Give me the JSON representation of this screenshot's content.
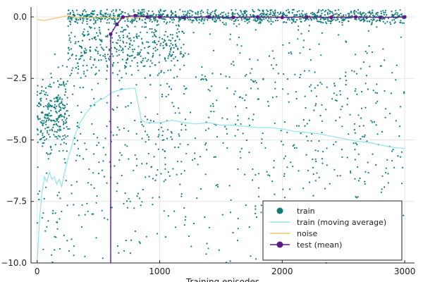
{
  "chart_data": {
    "type": "scatter",
    "xlabel": "Training episodes",
    "ylabel": "",
    "xlim": [
      -50,
      3080
    ],
    "ylim": [
      -10.0,
      0.4
    ],
    "x_ticks": [
      0,
      1000,
      2000,
      3000
    ],
    "x_tick_labels": [
      "0",
      "1000",
      "2000",
      "3000"
    ],
    "y_ticks": [
      0.0,
      -2.5,
      -5.0,
      -7.5,
      -10.0
    ],
    "y_tick_labels": [
      "0.0",
      "-2.5",
      "-5.0",
      "-7.5",
      "-10.0"
    ],
    "grid": true,
    "legend": "bottom-right",
    "colors": {
      "train": "#0e7c7b",
      "train_moving_average": "#8ee6e8",
      "noise": "#f4c36a",
      "test_mean": "#5b1a8a"
    },
    "series": [
      {
        "name": "train",
        "kind": "scatter",
        "color": "#0e7c7b",
        "note_points": "sampled approximation of dense scatter",
        "clusters": [
          {
            "x_range": [
              0,
              250
            ],
            "y_center": -3.9,
            "y_spread": 0.8,
            "count": 260
          },
          {
            "x_range": [
              0,
              250
            ],
            "y_center": -8.5,
            "y_spread": 1.5,
            "count": 40
          },
          {
            "x_range": [
              250,
              3000
            ],
            "y_center": 0.0,
            "y_spread": 0.12,
            "count": 900
          },
          {
            "x_range": [
              250,
              1200
            ],
            "y_center": -1.2,
            "y_spread": 0.6,
            "count": 350
          },
          {
            "x_range": [
              250,
              3000
            ],
            "y_center": -4.5,
            "y_spread": 3.2,
            "count": 900
          }
        ]
      },
      {
        "name": "train (moving average)",
        "kind": "line",
        "color": "#8ee6e8",
        "x": [
          0,
          20,
          40,
          60,
          80,
          100,
          120,
          140,
          160,
          180,
          200,
          220,
          240,
          260,
          280,
          300,
          350,
          400,
          450,
          500,
          550,
          600,
          650,
          700,
          750,
          800,
          820,
          850,
          900,
          1000,
          1100,
          1200,
          1300,
          1400,
          1500,
          1600,
          1700,
          1800,
          1900,
          2000,
          2100,
          2200,
          2300,
          2400,
          2500,
          2600,
          2700,
          2800,
          2900,
          3000
        ],
        "y": [
          -10.0,
          -8.2,
          -7.1,
          -6.5,
          -6.7,
          -6.3,
          -6.6,
          -6.5,
          -6.8,
          -6.6,
          -6.9,
          -6.4,
          -6.0,
          -5.6,
          -5.3,
          -4.9,
          -4.3,
          -3.9,
          -3.6,
          -3.4,
          -3.3,
          -3.1,
          -3.0,
          -2.95,
          -2.9,
          -2.9,
          -3.4,
          -4.2,
          -4.3,
          -4.3,
          -4.2,
          -4.3,
          -4.35,
          -4.3,
          -4.4,
          -4.4,
          -4.45,
          -4.5,
          -4.5,
          -4.55,
          -4.65,
          -4.7,
          -4.75,
          -4.85,
          -4.95,
          -5.05,
          -5.1,
          -5.2,
          -5.3,
          -5.35
        ]
      },
      {
        "name": "noise",
        "kind": "line",
        "color": "#f4c36a",
        "x": [
          0,
          50,
          100,
          150,
          200,
          250,
          300,
          400,
          500,
          600,
          700,
          800,
          900,
          1000,
          1200,
          1400,
          1600,
          1800,
          2000,
          2200,
          2400,
          2600,
          2800,
          3000
        ],
        "y": [
          -0.1,
          -0.15,
          -0.1,
          -0.05,
          0.0,
          0.05,
          0.0,
          -0.05,
          0.0,
          -0.05,
          0.0,
          -0.02,
          0.0,
          0.0,
          -0.02,
          0.0,
          -0.02,
          0.0,
          0.0,
          -0.02,
          0.0,
          0.0,
          -0.02,
          0.0
        ]
      },
      {
        "name": "test (mean)",
        "kind": "line-marker",
        "color": "#5b1a8a",
        "x": [
          600,
          600,
          650,
          700,
          800,
          900,
          1000,
          1200,
          1400,
          1600,
          1800,
          2000,
          2200,
          2400,
          2600,
          2800,
          3000
        ],
        "y": [
          -10.0,
          -0.7,
          -0.3,
          0.0,
          0.05,
          0.0,
          0.0,
          -0.02,
          0.0,
          -0.02,
          0.0,
          -0.02,
          0.0,
          -0.02,
          0.0,
          -0.02,
          0.0
        ]
      }
    ]
  }
}
